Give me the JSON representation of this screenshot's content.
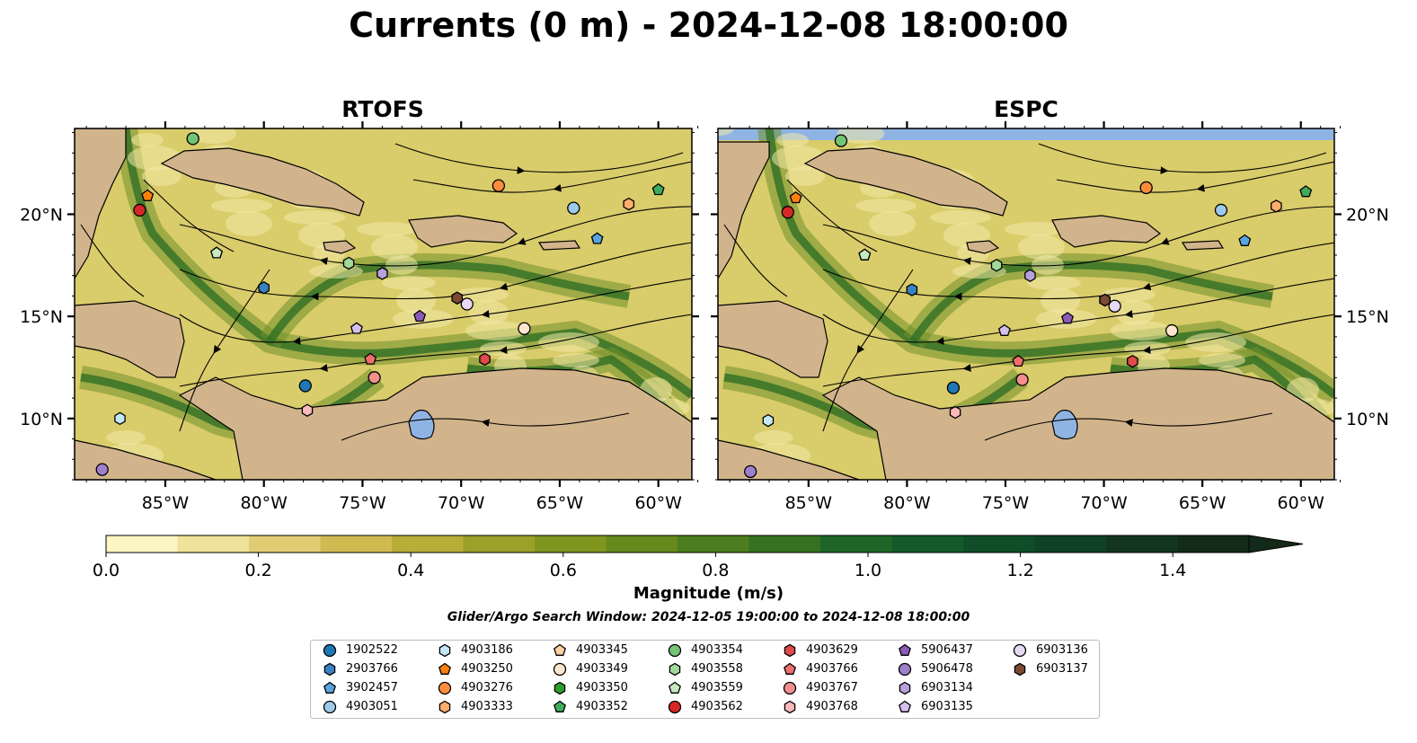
{
  "title": "Currents (0 m) - 2024-12-08 18:00:00",
  "panels": [
    {
      "title": "RTOFS"
    },
    {
      "title": "ESPC"
    }
  ],
  "axes": {
    "lon_ticks": [
      "85°W",
      "80°W",
      "75°W",
      "70°W",
      "65°W",
      "60°W"
    ],
    "lat_ticks": [
      "20°N",
      "15°N",
      "10°N"
    ]
  },
  "colorbar": {
    "label": "Magnitude (m/s)",
    "ticks": [
      "0.0",
      "0.2",
      "0.4",
      "0.6",
      "0.8",
      "1.0",
      "1.2",
      "1.4"
    ],
    "range": [
      0,
      1.5
    ],
    "extend": "max",
    "colors": [
      "#fdf6c3",
      "#f0e29a",
      "#e0cd73",
      "#d0bb52",
      "#b8ad38",
      "#9aa02a",
      "#7f9520",
      "#66881d",
      "#4c7d1f",
      "#357121",
      "#1f6528",
      "#135a2a",
      "#0f4d28",
      "#0f4124",
      "#12351e",
      "#142a18"
    ]
  },
  "search_window": "Glider/Argo Search Window: 2024-12-05 19:00:00 to 2024-12-08 18:00:00",
  "legend": [
    {
      "id": "1902522",
      "shape": "circle",
      "color": "#1f77b4"
    },
    {
      "id": "2903766",
      "shape": "hexagon",
      "color": "#3a82c4"
    },
    {
      "id": "3902457",
      "shape": "pentagon",
      "color": "#5aa4de"
    },
    {
      "id": "4903051",
      "shape": "circle",
      "color": "#9ecae9"
    },
    {
      "id": "4903186",
      "shape": "hexagon",
      "color": "#c6e7f5"
    },
    {
      "id": "4903250",
      "shape": "pentagon",
      "color": "#ff7f0e"
    },
    {
      "id": "4903276",
      "shape": "circle",
      "color": "#fd8d3c"
    },
    {
      "id": "4903333",
      "shape": "hexagon",
      "color": "#fdae6b"
    },
    {
      "id": "4903345",
      "shape": "pentagon",
      "color": "#fdd0a2"
    },
    {
      "id": "4903349",
      "shape": "circle",
      "color": "#fee6ce"
    },
    {
      "id": "4903350",
      "shape": "hexagon",
      "color": "#2ca02c"
    },
    {
      "id": "4903352",
      "shape": "pentagon",
      "color": "#41ab5d"
    },
    {
      "id": "4903354",
      "shape": "circle",
      "color": "#74c476"
    },
    {
      "id": "4903558",
      "shape": "hexagon",
      "color": "#a1d99b"
    },
    {
      "id": "4903559",
      "shape": "pentagon",
      "color": "#c7e9c0"
    },
    {
      "id": "4903562",
      "shape": "circle",
      "color": "#d62728"
    },
    {
      "id": "4903629",
      "shape": "hexagon",
      "color": "#e04a4a"
    },
    {
      "id": "4903766",
      "shape": "pentagon",
      "color": "#ef6f6f"
    },
    {
      "id": "4903767",
      "shape": "circle",
      "color": "#f28e8e"
    },
    {
      "id": "4903768",
      "shape": "hexagon",
      "color": "#fbb9b9"
    },
    {
      "id": "5906437",
      "shape": "pentagon",
      "color": "#8c5ab8"
    },
    {
      "id": "5906478",
      "shape": "circle",
      "color": "#9e7fcc"
    },
    {
      "id": "6903134",
      "shape": "hexagon",
      "color": "#b8a0dc"
    },
    {
      "id": "6903135",
      "shape": "pentagon",
      "color": "#d4c0ec"
    },
    {
      "id": "6903136",
      "shape": "circle",
      "color": "#e8d9f6"
    },
    {
      "id": "6903137",
      "shape": "hexagon",
      "color": "#7b4a35"
    }
  ],
  "colors": {
    "land": "#d2b48c",
    "lake": "#8fb4e3",
    "streamline": "#000000"
  }
}
